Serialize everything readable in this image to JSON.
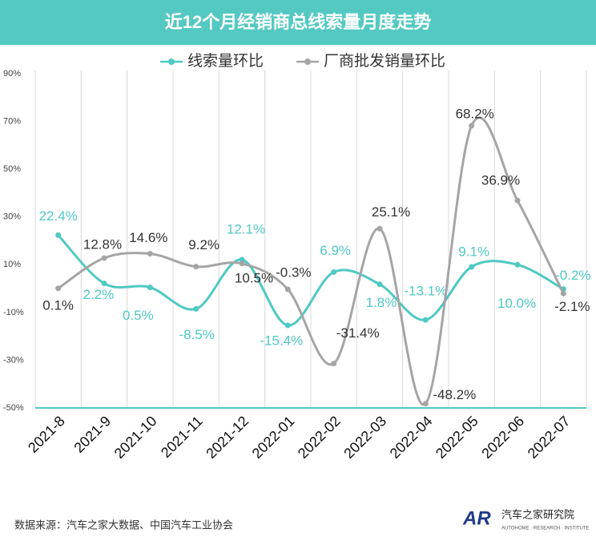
{
  "chart_data": {
    "type": "line",
    "title": "近12个月经销商总线索量月度走势",
    "categories": [
      "2021-8",
      "2021-9",
      "2021-10",
      "2021-11",
      "2021-12",
      "2022-01",
      "2022-02",
      "2022-03",
      "2022-04",
      "2022-05",
      "2022-06",
      "2022-07"
    ],
    "series": [
      {
        "name": "线索量环比",
        "color": "#4fc9c3",
        "values": [
          22.4,
          2.2,
          0.5,
          -8.5,
          12.1,
          -15.4,
          6.9,
          1.8,
          -13.1,
          9.1,
          10.0,
          -0.2
        ],
        "value_labels": [
          "22.4%",
          "2.2%",
          "0.5%",
          "-8.5%",
          "12.1%",
          "-15.4%",
          "6.9%",
          "1.8%",
          "-13.1%",
          "9.1%",
          "10.0%",
          "-0.2%"
        ]
      },
      {
        "name": "厂商批发销量环比",
        "color": "#a5a5a5",
        "values": [
          0.1,
          12.8,
          14.6,
          9.2,
          10.5,
          -0.3,
          -31.4,
          25.1,
          -48.2,
          68.2,
          36.9,
          -2.1
        ],
        "value_labels": [
          "0.1%",
          "12.8%",
          "14.6%",
          "9.2%",
          "10.5%",
          "-0.3%",
          "-31.4%",
          "25.1%",
          "-48.2%",
          "68.2%",
          "36.9%",
          "-2.1%"
        ]
      }
    ],
    "ylim": [
      -50,
      90
    ],
    "yticks": [
      {
        "value": 90,
        "label": "90%"
      },
      {
        "value": 70,
        "label": "70%"
      },
      {
        "value": 50,
        "label": "50%"
      },
      {
        "value": 30,
        "label": "30%"
      },
      {
        "value": 10,
        "label": "10%"
      },
      {
        "value": -10,
        "label": "-10%"
      },
      {
        "value": -30,
        "label": "-30%"
      },
      {
        "value": -50,
        "label": "-50%"
      }
    ],
    "grid": true,
    "legend": "top",
    "source": "数据来源：汽车之家大数据、中国汽车工业协会",
    "brand": {
      "logo": "AR",
      "name": "汽车之家研究院",
      "sub": "AUTOHOME · RESEARCH · INSTITUTE"
    }
  }
}
